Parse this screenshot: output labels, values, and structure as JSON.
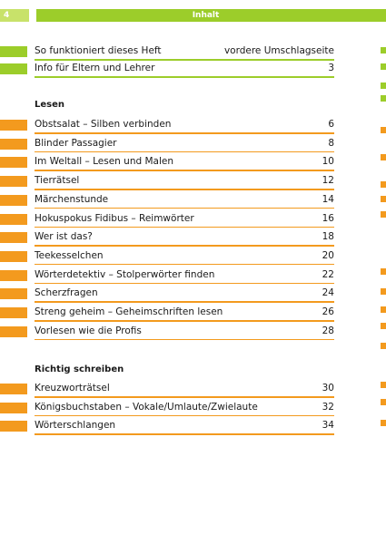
{
  "header": {
    "page_number": "4",
    "title": "Inhalt"
  },
  "colors": {
    "green": "#9ccd2a",
    "light_green": "#c8e26a",
    "orange": "#f39a1e",
    "rule_green": "#9ccd2a",
    "rule_orange": "#f39a1e"
  },
  "intro": {
    "items": [
      {
        "title": "So funktioniert dieses Heft",
        "page": "vordere Umschlagseite"
      },
      {
        "title": "Info für Eltern und Lehrer",
        "page": "3"
      }
    ]
  },
  "lesen": {
    "heading": "Lesen",
    "items": [
      {
        "title": "Obstsalat – Silben verbinden",
        "page": "6"
      },
      {
        "title": "Blinder Passagier",
        "page": "8"
      },
      {
        "title": "Im Weltall – Lesen und Malen",
        "page": "10"
      },
      {
        "title": "Tierrätsel",
        "page": "12"
      },
      {
        "title": "Märchenstunde",
        "page": "14"
      },
      {
        "title": "Hokuspokus Fidibus – Reimwörter",
        "page": "16"
      },
      {
        "title": "Wer ist das?",
        "page": "18"
      },
      {
        "title": "Teekesselchen",
        "page": "20"
      },
      {
        "title": "Wörterdetektiv – Stolperwörter finden",
        "page": "22"
      },
      {
        "title": "Scherzfragen",
        "page": "24"
      },
      {
        "title": "Streng geheim – Geheimschriften lesen",
        "page": "26"
      },
      {
        "title": "Vorlesen wie die Profis",
        "page": "28"
      }
    ]
  },
  "schreiben": {
    "heading": "Richtig schreiben",
    "items": [
      {
        "title": "Kreuzworträtsel",
        "page": "30"
      },
      {
        "title": "Königsbuchstaben – Vokale/Umlaute/Zwielaute",
        "page": "32"
      },
      {
        "title": "Wörterschlangen",
        "page": "34"
      }
    ]
  }
}
